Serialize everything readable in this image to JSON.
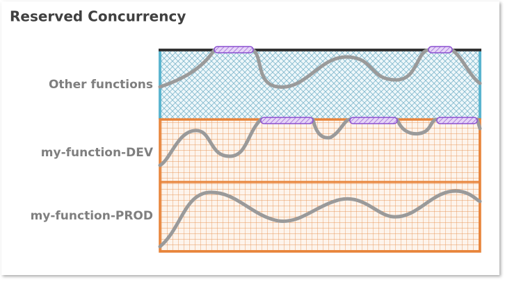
{
  "header": {
    "title": "Reserved Concurrency"
  },
  "rows": [
    {
      "label": "Other functions"
    },
    {
      "label": "my-function-DEV"
    },
    {
      "label": "my-function-PROD"
    }
  ]
}
